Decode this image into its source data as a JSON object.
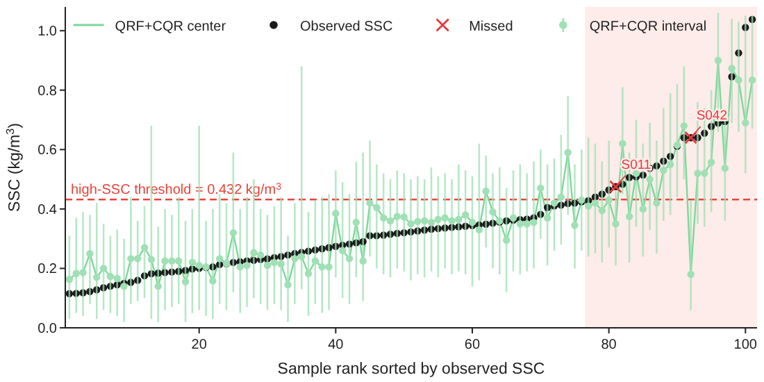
{
  "chart_data": {
    "type": "line",
    "xlabel": "Sample rank sorted by observed SSC",
    "ylabel": "SSC (kg/m$^{3}$)",
    "x": [
      1,
      2,
      3,
      4,
      5,
      6,
      7,
      8,
      9,
      10,
      11,
      12,
      13,
      14,
      15,
      16,
      17,
      18,
      19,
      20,
      21,
      22,
      23,
      24,
      25,
      26,
      27,
      28,
      29,
      30,
      31,
      32,
      33,
      34,
      35,
      36,
      37,
      38,
      39,
      40,
      41,
      42,
      43,
      44,
      45,
      46,
      47,
      48,
      49,
      50,
      51,
      52,
      53,
      54,
      55,
      56,
      57,
      58,
      59,
      60,
      61,
      62,
      63,
      64,
      65,
      66,
      67,
      68,
      69,
      70,
      71,
      72,
      73,
      74,
      75,
      76,
      77,
      78,
      79,
      80,
      81,
      82,
      83,
      84,
      85,
      86,
      87,
      88,
      89,
      90,
      91,
      92,
      93,
      94,
      95,
      96,
      97,
      98,
      99,
      100,
      101
    ],
    "xlim": [
      0.4,
      101.7
    ],
    "xticks": [
      20,
      40,
      60,
      80,
      100
    ],
    "ylim": [
      0,
      1.08
    ],
    "yticks": [
      {
        "value": 0,
        "label": "0.0"
      },
      {
        "value": 0.2,
        "label": "0.2"
      },
      {
        "value": 0.4,
        "label": "0.4"
      },
      {
        "value": 0.6,
        "label": "0.6"
      },
      {
        "value": 0.8,
        "label": "0.8"
      },
      {
        "value": 1,
        "label": "1.0"
      }
    ],
    "grid": false,
    "legend": "top",
    "series": [
      {
        "name": "QRF+CQR center",
        "color": "#7dd89a",
        "marker": "none",
        "values": [
          0.163,
          0.183,
          0.186,
          0.25,
          0.17,
          0.2,
          0.173,
          0.166,
          0.14,
          0.233,
          0.233,
          0.27,
          0.23,
          0.14,
          0.225,
          0.225,
          0.225,
          0.155,
          0.22,
          0.21,
          0.205,
          0.158,
          0.233,
          0.217,
          0.32,
          0.205,
          0.21,
          0.253,
          0.245,
          0.21,
          0.22,
          0.215,
          0.145,
          0.233,
          0.24,
          0.183,
          0.225,
          0.205,
          0.205,
          0.385,
          0.26,
          0.233,
          0.355,
          0.225,
          0.42,
          0.405,
          0.37,
          0.36,
          0.375,
          0.373,
          0.35,
          0.358,
          0.36,
          0.355,
          0.365,
          0.37,
          0.36,
          0.365,
          0.38,
          0.355,
          0.33,
          0.46,
          0.39,
          0.36,
          0.295,
          0.37,
          0.35,
          0.35,
          0.355,
          0.47,
          0.37,
          0.42,
          0.44,
          0.59,
          0.345,
          0.43,
          0.41,
          0.42,
          0.395,
          0.43,
          0.35,
          0.62,
          0.375,
          0.52,
          0.4,
          0.5,
          0.42,
          0.53,
          0.55,
          0.615,
          0.68,
          0.18,
          0.52,
          0.52,
          0.557,
          0.9,
          0.537,
          0.873,
          0.834,
          0.69,
          0.834
        ]
      },
      {
        "name": "Observed SSC",
        "type": "scatter",
        "color": "#1a1a1a",
        "marker": "circle",
        "values": [
          0.115,
          0.116,
          0.118,
          0.122,
          0.128,
          0.135,
          0.14,
          0.145,
          0.15,
          0.153,
          0.16,
          0.175,
          0.182,
          0.184,
          0.186,
          0.188,
          0.19,
          0.193,
          0.198,
          0.2,
          0.203,
          0.205,
          0.213,
          0.216,
          0.22,
          0.222,
          0.225,
          0.227,
          0.23,
          0.232,
          0.236,
          0.24,
          0.245,
          0.25,
          0.254,
          0.258,
          0.262,
          0.266,
          0.27,
          0.274,
          0.278,
          0.282,
          0.286,
          0.29,
          0.31,
          0.31,
          0.312,
          0.315,
          0.318,
          0.32,
          0.323,
          0.326,
          0.329,
          0.332,
          0.334,
          0.336,
          0.338,
          0.34,
          0.342,
          0.344,
          0.346,
          0.349,
          0.352,
          0.356,
          0.36,
          0.362,
          0.364,
          0.366,
          0.37,
          0.382,
          0.405,
          0.41,
          0.413,
          0.418,
          0.42,
          0.424,
          0.428,
          0.44,
          0.45,
          0.464,
          0.475,
          0.483,
          0.506,
          0.508,
          0.514,
          0.537,
          0.545,
          0.561,
          0.577,
          0.611,
          0.64,
          0.64,
          0.64,
          0.655,
          0.678,
          0.689,
          0.694,
          0.845,
          0.925,
          1.011,
          1.038
        ]
      },
      {
        "name": "Missed",
        "type": "scatter",
        "color": "#e8383d",
        "marker": "cross",
        "x": [
          81,
          92
        ],
        "values": [
          0.475,
          0.64
        ]
      },
      {
        "name": "QRF+CQR interval",
        "type": "scatter",
        "color": "#9fe0b4",
        "marker": "circle",
        "values": [
          0.163,
          0.183,
          0.186,
          0.25,
          0.17,
          0.2,
          0.173,
          0.166,
          0.14,
          0.233,
          0.233,
          0.27,
          0.23,
          0.14,
          0.225,
          0.225,
          0.225,
          0.155,
          0.22,
          0.21,
          0.205,
          0.158,
          0.233,
          0.217,
          0.32,
          0.205,
          0.21,
          0.253,
          0.245,
          0.21,
          0.22,
          0.215,
          0.145,
          0.233,
          0.24,
          0.183,
          0.225,
          0.205,
          0.205,
          0.385,
          0.26,
          0.233,
          0.355,
          0.225,
          0.42,
          0.405,
          0.37,
          0.36,
          0.375,
          0.373,
          0.35,
          0.358,
          0.36,
          0.355,
          0.365,
          0.37,
          0.36,
          0.365,
          0.38,
          0.355,
          0.33,
          0.46,
          0.39,
          0.36,
          0.295,
          0.37,
          0.35,
          0.35,
          0.355,
          0.47,
          0.37,
          0.42,
          0.44,
          0.59,
          0.345,
          0.43,
          0.41,
          0.42,
          0.395,
          0.43,
          0.35,
          0.62,
          0.375,
          0.52,
          0.4,
          0.5,
          0.42,
          0.53,
          0.55,
          0.615,
          0.68,
          0.18,
          0.52,
          0.52,
          0.557,
          0.9,
          0.537,
          0.873,
          0.834,
          0.69,
          0.834
        ],
        "errors": [
          [
            0.03,
            0.31
          ],
          [
            0.05,
            0.37
          ],
          [
            0.04,
            0.39
          ],
          [
            0.08,
            0.38
          ],
          [
            0.03,
            0.42
          ],
          [
            0.06,
            0.35
          ],
          [
            0.05,
            0.31
          ],
          [
            0.04,
            0.33
          ],
          [
            0.02,
            0.3
          ],
          [
            0.08,
            0.44
          ],
          [
            0.09,
            0.36
          ],
          [
            0.1,
            0.41
          ],
          [
            0.03,
            0.68
          ],
          [
            0.02,
            0.34
          ],
          [
            0.06,
            0.4
          ],
          [
            0.07,
            0.38
          ],
          [
            0.08,
            0.44
          ],
          [
            0.02,
            0.36
          ],
          [
            0.05,
            0.4
          ],
          [
            0.06,
            0.68
          ],
          [
            0.04,
            0.36
          ],
          [
            0.03,
            0.4
          ],
          [
            0.08,
            0.45
          ],
          [
            0.06,
            0.42
          ],
          [
            0.12,
            0.59
          ],
          [
            0.05,
            0.4
          ],
          [
            0.07,
            0.44
          ],
          [
            0.1,
            0.5
          ],
          [
            0.08,
            0.4
          ],
          [
            0.06,
            0.38
          ],
          [
            0.08,
            0.41
          ],
          [
            0.06,
            0.44
          ],
          [
            0.02,
            0.31
          ],
          [
            0.08,
            0.42
          ],
          [
            0.13,
            0.88
          ],
          [
            0.04,
            0.39
          ],
          [
            0.08,
            0.43
          ],
          [
            0.05,
            0.44
          ],
          [
            0.06,
            0.45
          ],
          [
            0.17,
            0.53
          ],
          [
            0.1,
            0.49
          ],
          [
            0.08,
            0.45
          ],
          [
            0.17,
            0.56
          ],
          [
            0.09,
            0.59
          ],
          [
            0.24,
            0.63
          ],
          [
            0.2,
            0.55
          ],
          [
            0.18,
            0.52
          ],
          [
            0.17,
            0.5
          ],
          [
            0.2,
            0.53
          ],
          [
            0.19,
            0.52
          ],
          [
            0.16,
            0.5
          ],
          [
            0.18,
            0.51
          ],
          [
            0.17,
            0.5
          ],
          [
            0.19,
            0.54
          ],
          [
            0.17,
            0.51
          ],
          [
            0.2,
            0.52
          ],
          [
            0.18,
            0.5
          ],
          [
            0.19,
            0.55
          ],
          [
            0.18,
            0.53
          ],
          [
            0.14,
            0.51
          ],
          [
            0.16,
            0.62
          ],
          [
            0.27,
            0.58
          ],
          [
            0.2,
            0.52
          ],
          [
            0.18,
            0.54
          ],
          [
            0.12,
            0.47
          ],
          [
            0.19,
            0.53
          ],
          [
            0.18,
            0.55
          ],
          [
            0.19,
            0.52
          ],
          [
            0.2,
            0.56
          ],
          [
            0.3,
            0.6
          ],
          [
            0.21,
            0.55
          ],
          [
            0.26,
            0.57
          ],
          [
            0.28,
            0.65
          ],
          [
            0.38,
            0.78
          ],
          [
            0.2,
            0.55
          ],
          [
            0.26,
            0.6
          ],
          [
            0.24,
            0.64
          ],
          [
            0.25,
            0.62
          ],
          [
            0.22,
            0.56
          ],
          [
            0.27,
            0.63
          ],
          [
            0.21,
            0.46
          ],
          [
            0.45,
            0.81
          ],
          [
            0.22,
            0.59
          ],
          [
            0.34,
            0.7
          ],
          [
            0.24,
            0.62
          ],
          [
            0.33,
            0.69
          ],
          [
            0.25,
            0.63
          ],
          [
            0.36,
            0.74
          ],
          [
            0.38,
            0.79
          ],
          [
            0.44,
            0.82
          ],
          [
            0.5,
            0.88
          ],
          [
            0.06,
            0.43
          ],
          [
            0.35,
            0.76
          ],
          [
            0.34,
            0.74
          ],
          [
            0.39,
            0.8
          ],
          [
            0.66,
            1.06
          ],
          [
            0.36,
            0.72
          ],
          [
            0.69,
            1.04
          ],
          [
            0.66,
            1.03
          ],
          [
            0.52,
            1.05
          ],
          [
            0.67,
            1.05
          ]
        ]
      }
    ],
    "ref_lines": [
      {
        "axis": "y",
        "value": 0.432,
        "label": "high-SSC threshold = 0.432 kg/m$^{3}$",
        "color": "#e8443a",
        "line_style": "dashed"
      }
    ],
    "bands": [
      {
        "axis": "x",
        "from": 76.5,
        "to": 101.7,
        "color": "#fdece9"
      }
    ],
    "annotations": [
      {
        "text": "S011",
        "x": 81,
        "y": 0.475
      },
      {
        "text": "S042",
        "x": 92,
        "y": 0.64
      }
    ]
  }
}
